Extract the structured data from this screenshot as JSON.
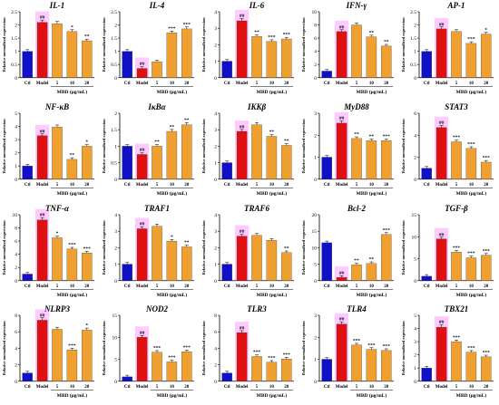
{
  "shared": {
    "ylabel": "Relative normalized expression",
    "xlabel": "MBD (μg/mL)",
    "categories": [
      "Ctl",
      "Model",
      "5",
      "10",
      "20"
    ],
    "colors": {
      "ctl": "#1010c8",
      "model": "#e01010",
      "mbd": "#f0a030",
      "highlight": "#ff66ff"
    }
  },
  "chart_data": [
    {
      "type": "bar",
      "title": "IL-1",
      "ylim": [
        0,
        2.5
      ],
      "ticks": [
        0,
        0.5,
        1,
        1.5,
        2,
        2.5
      ],
      "values": [
        1.0,
        2.1,
        2.05,
        1.75,
        1.4
      ],
      "annotations": [
        "",
        "##",
        "",
        "*",
        "**"
      ]
    },
    {
      "type": "bar",
      "title": "IL-4",
      "ylim": [
        0,
        2.5
      ],
      "ticks": [
        0,
        0.5,
        1,
        1.5,
        2,
        2.5
      ],
      "values": [
        1.0,
        0.35,
        0.6,
        1.7,
        1.85
      ],
      "annotations": [
        "",
        "##",
        "",
        "***",
        "***"
      ]
    },
    {
      "type": "bar",
      "title": "IL-6",
      "ylim": [
        0,
        4
      ],
      "ticks": [
        0,
        1,
        2,
        3,
        4
      ],
      "values": [
        1.0,
        3.45,
        2.5,
        2.2,
        2.35
      ],
      "annotations": [
        "",
        "##",
        "**",
        "***",
        "***"
      ]
    },
    {
      "type": "bar",
      "title": "IFN-γ",
      "ylim": [
        0,
        10
      ],
      "ticks": [
        0,
        2,
        4,
        6,
        8,
        10
      ],
      "values": [
        1.0,
        7.0,
        8.0,
        6.2,
        4.8
      ],
      "annotations": [
        "",
        "##",
        "",
        "**",
        "**"
      ]
    },
    {
      "type": "bar",
      "title": "AP-1",
      "ylim": [
        0,
        2.5
      ],
      "ticks": [
        0,
        0.5,
        1,
        1.5,
        2,
        2.5
      ],
      "values": [
        1.0,
        1.85,
        1.75,
        1.3,
        1.65
      ],
      "annotations": [
        "",
        "##",
        "",
        "***",
        "*"
      ]
    },
    {
      "type": "bar",
      "title": "NF-κB",
      "ylim": [
        0,
        5
      ],
      "ticks": [
        0,
        1,
        2,
        3,
        4,
        5
      ],
      "values": [
        1.0,
        3.3,
        3.95,
        1.5,
        2.5
      ],
      "annotations": [
        "",
        "##",
        "",
        "**",
        "*"
      ]
    },
    {
      "type": "bar",
      "title": "IκBα",
      "ylim": [
        0,
        2
      ],
      "ticks": [
        0,
        0.5,
        1,
        1.5,
        2
      ],
      "values": [
        1.0,
        0.75,
        1.0,
        1.45,
        1.65
      ],
      "annotations": [
        "",
        "##",
        "**",
        "**",
        "**"
      ]
    },
    {
      "type": "bar",
      "title": "IKKβ",
      "ylim": [
        0,
        4
      ],
      "ticks": [
        0,
        1,
        2,
        3,
        4
      ],
      "values": [
        1.0,
        2.9,
        3.3,
        2.6,
        2.05
      ],
      "annotations": [
        "",
        "##",
        "",
        "**",
        "**"
      ]
    },
    {
      "type": "bar",
      "title": "MyD88",
      "ylim": [
        0,
        3
      ],
      "ticks": [
        0,
        1,
        2,
        3
      ],
      "values": [
        1.0,
        2.55,
        1.85,
        1.75,
        1.75
      ],
      "annotations": [
        "",
        "##",
        "**",
        "**",
        "***"
      ]
    },
    {
      "type": "bar",
      "title": "STAT3",
      "ylim": [
        0,
        6
      ],
      "ticks": [
        0,
        2,
        4,
        6
      ],
      "values": [
        1.0,
        4.7,
        3.4,
        2.8,
        1.55
      ],
      "annotations": [
        "",
        "##",
        "***",
        "***",
        "***"
      ]
    },
    {
      "type": "bar",
      "title": "TNF-α",
      "ylim": [
        0,
        10
      ],
      "ticks": [
        0,
        2,
        4,
        6,
        8,
        10
      ],
      "values": [
        1.0,
        9.2,
        6.5,
        4.8,
        4.2
      ],
      "annotations": [
        "",
        "##",
        "*",
        "***",
        "***"
      ]
    },
    {
      "type": "bar",
      "title": "TRAF1",
      "ylim": [
        0,
        4
      ],
      "ticks": [
        0,
        1,
        2,
        3,
        4
      ],
      "values": [
        1.0,
        3.15,
        3.3,
        2.4,
        2.05
      ],
      "annotations": [
        "",
        "##",
        "",
        "*",
        "**"
      ]
    },
    {
      "type": "bar",
      "title": "TRAF6",
      "ylim": [
        0,
        4
      ],
      "ticks": [
        0,
        1,
        2,
        3,
        4
      ],
      "values": [
        1.0,
        2.7,
        2.75,
        2.45,
        1.7
      ],
      "annotations": [
        "",
        "##",
        "",
        "",
        "**"
      ]
    },
    {
      "type": "bar",
      "title": "Bcl-2",
      "ylim": [
        0,
        20
      ],
      "ticks": [
        0,
        5,
        10,
        15,
        20
      ],
      "values": [
        11.5,
        1.0,
        4.8,
        5.2,
        14.0
      ],
      "annotations": [
        "",
        "##",
        "**",
        "**",
        "***"
      ]
    },
    {
      "type": "bar",
      "title": "TGF-β",
      "ylim": [
        0,
        15
      ],
      "ticks": [
        0,
        5,
        10,
        15
      ],
      "values": [
        1.0,
        9.5,
        6.5,
        5.2,
        5.8
      ],
      "annotations": [
        "",
        "##",
        "***",
        "***",
        "***"
      ]
    },
    {
      "type": "bar",
      "title": "NLRP3",
      "ylim": [
        0,
        8
      ],
      "ticks": [
        0,
        2,
        4,
        6,
        8
      ],
      "values": [
        1.0,
        7.4,
        6.3,
        3.8,
        6.2
      ],
      "annotations": [
        "",
        "##",
        "",
        "***",
        "*"
      ]
    },
    {
      "type": "bar",
      "title": "NOD2",
      "ylim": [
        0,
        15
      ],
      "ticks": [
        0,
        5,
        10,
        15
      ],
      "values": [
        1.0,
        10.0,
        6.6,
        4.4,
        6.7
      ],
      "annotations": [
        "",
        "##",
        "***",
        "***",
        "***"
      ]
    },
    {
      "type": "bar",
      "title": "TLR3",
      "ylim": [
        0,
        8
      ],
      "ticks": [
        0,
        2,
        4,
        6,
        8
      ],
      "values": [
        1.0,
        5.9,
        3.0,
        2.3,
        2.7
      ],
      "annotations": [
        "",
        "##",
        "***",
        "***",
        "***"
      ]
    },
    {
      "type": "bar",
      "title": "TLR4",
      "ylim": [
        0,
        3
      ],
      "ticks": [
        0,
        1,
        2,
        3
      ],
      "values": [
        1.0,
        2.6,
        1.65,
        1.45,
        1.4
      ],
      "annotations": [
        "",
        "##",
        "***",
        "***",
        "***"
      ]
    },
    {
      "type": "bar",
      "title": "TBX21",
      "ylim": [
        0,
        5
      ],
      "ticks": [
        0,
        1,
        2,
        3,
        4,
        5
      ],
      "values": [
        1.0,
        4.1,
        3.0,
        2.2,
        1.85
      ],
      "annotations": [
        "",
        "##",
        "***",
        "***",
        "***"
      ]
    }
  ]
}
